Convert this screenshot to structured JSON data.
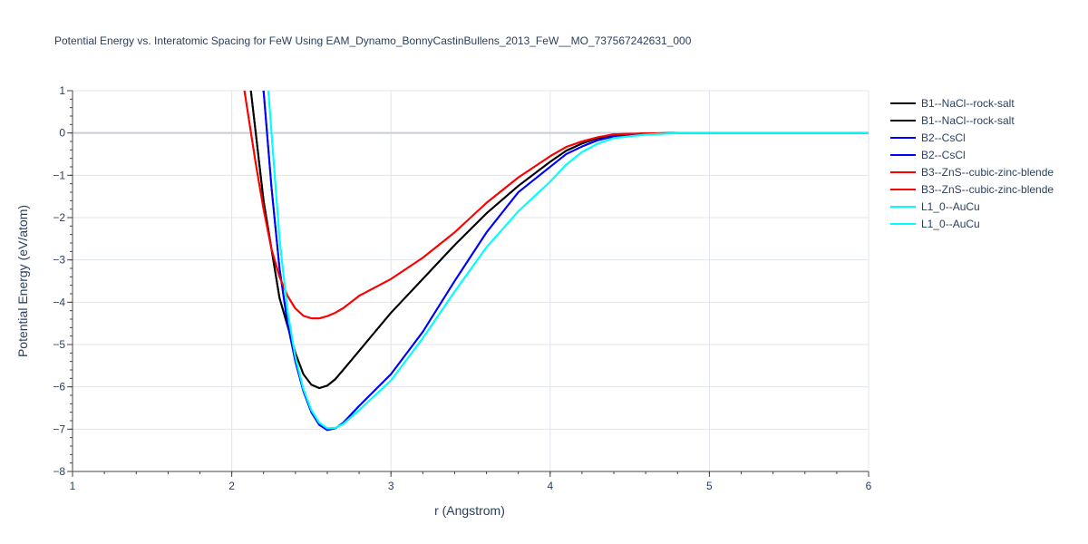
{
  "chart_data": {
    "type": "line",
    "title": "Potential Energy vs. Interatomic Spacing for FeW Using EAM_Dynamo_BonnyCastinBullens_2013_FeW__MO_737567242631_000",
    "xlabel": "r (Angstrom)",
    "ylabel": "Potential Energy (eV/atom)",
    "xlim": [
      1,
      6
    ],
    "ylim": [
      -8,
      1
    ],
    "xticks": [
      1,
      2,
      3,
      4,
      5,
      6
    ],
    "yticks": [
      1,
      0,
      -1,
      -2,
      -3,
      -4,
      -5,
      -6,
      -7,
      -8
    ],
    "xtick_labels": [
      "1",
      "2",
      "3",
      "4",
      "5",
      "6"
    ],
    "ytick_labels": [
      "1",
      "0",
      "−1",
      "−2",
      "−3",
      "−4",
      "−5",
      "−6",
      "−7",
      "−8"
    ],
    "grid": true,
    "legend_position": "right",
    "series": [
      {
        "name": "B1--NaCl--rock-salt",
        "color": "#000000",
        "x": [
          2.12,
          2.2,
          2.3,
          2.4,
          2.45,
          2.5,
          2.55,
          2.6,
          2.65,
          2.7,
          2.8,
          2.9,
          3.0,
          3.2,
          3.4,
          3.6,
          3.8,
          4.0,
          4.1,
          4.2,
          4.3,
          4.4,
          4.6,
          4.8,
          5.0,
          6.0
        ],
        "y": [
          1.0,
          -1.6,
          -3.9,
          -5.2,
          -5.7,
          -5.95,
          -6.03,
          -5.97,
          -5.82,
          -5.6,
          -5.15,
          -4.7,
          -4.25,
          -3.45,
          -2.65,
          -1.9,
          -1.25,
          -0.68,
          -0.42,
          -0.25,
          -0.12,
          -0.05,
          -0.01,
          0.0,
          0.0,
          0.0
        ]
      },
      {
        "name": "B1--NaCl--rock-salt",
        "color": "#000000",
        "x": [
          2.12,
          2.2,
          2.3,
          2.4,
          2.45,
          2.5,
          2.55,
          2.6,
          2.65,
          2.7,
          2.8,
          2.9,
          3.0,
          3.2,
          3.4,
          3.6,
          3.8,
          4.0,
          4.1,
          4.2,
          4.3,
          4.4,
          4.6,
          4.8,
          5.0,
          6.0
        ],
        "y": [
          1.0,
          -1.6,
          -3.9,
          -5.2,
          -5.7,
          -5.95,
          -6.03,
          -5.97,
          -5.82,
          -5.6,
          -5.15,
          -4.7,
          -4.25,
          -3.45,
          -2.65,
          -1.9,
          -1.25,
          -0.68,
          -0.42,
          -0.25,
          -0.12,
          -0.05,
          -0.01,
          0.0,
          0.0,
          0.0
        ]
      },
      {
        "name": "B2--CsCl",
        "color": "#0000ff",
        "x": [
          2.2,
          2.25,
          2.3,
          2.35,
          2.4,
          2.45,
          2.5,
          2.55,
          2.6,
          2.65,
          2.7,
          2.8,
          3.0,
          3.2,
          3.4,
          3.6,
          3.8,
          4.0,
          4.1,
          4.2,
          4.3,
          4.4,
          4.6,
          4.8,
          5.0,
          6.0
        ],
        "y": [
          1.0,
          -1.3,
          -3.2,
          -4.5,
          -5.4,
          -6.1,
          -6.6,
          -6.9,
          -7.02,
          -6.98,
          -6.85,
          -6.45,
          -5.7,
          -4.7,
          -3.5,
          -2.35,
          -1.4,
          -0.8,
          -0.5,
          -0.32,
          -0.17,
          -0.08,
          -0.02,
          0.0,
          0.0,
          0.0
        ]
      },
      {
        "name": "B2--CsCl",
        "color": "#0000ff",
        "x": [
          2.2,
          2.25,
          2.3,
          2.35,
          2.4,
          2.45,
          2.5,
          2.55,
          2.6,
          2.65,
          2.7,
          2.8,
          3.0,
          3.2,
          3.4,
          3.6,
          3.8,
          4.0,
          4.1,
          4.2,
          4.3,
          4.4,
          4.6,
          4.8,
          5.0,
          6.0
        ],
        "y": [
          1.0,
          -1.3,
          -3.2,
          -4.5,
          -5.4,
          -6.1,
          -6.6,
          -6.9,
          -7.02,
          -6.98,
          -6.85,
          -6.45,
          -5.7,
          -4.7,
          -3.5,
          -2.35,
          -1.4,
          -0.8,
          -0.5,
          -0.32,
          -0.17,
          -0.08,
          -0.02,
          0.0,
          0.0,
          0.0
        ]
      },
      {
        "name": "B3--ZnS--cubic-zinc-blende",
        "color": "#ff0000",
        "x": [
          2.08,
          2.15,
          2.2,
          2.25,
          2.3,
          2.35,
          2.4,
          2.45,
          2.5,
          2.55,
          2.6,
          2.65,
          2.7,
          2.8,
          3.0,
          3.2,
          3.4,
          3.6,
          3.8,
          4.0,
          4.1,
          4.2,
          4.3,
          4.4,
          4.6,
          4.8,
          5.0,
          6.0
        ],
        "y": [
          1.0,
          -0.7,
          -1.8,
          -2.75,
          -3.4,
          -3.85,
          -4.15,
          -4.32,
          -4.38,
          -4.38,
          -4.33,
          -4.25,
          -4.14,
          -3.85,
          -3.45,
          -2.95,
          -2.35,
          -1.65,
          -1.05,
          -0.55,
          -0.33,
          -0.2,
          -0.1,
          -0.03,
          -0.01,
          0.0,
          0.0,
          0.0
        ]
      },
      {
        "name": "B3--ZnS--cubic-zinc-blende",
        "color": "#ff0000",
        "x": [
          2.08,
          2.15,
          2.2,
          2.25,
          2.3,
          2.35,
          2.4,
          2.45,
          2.5,
          2.55,
          2.6,
          2.65,
          2.7,
          2.8,
          3.0,
          3.2,
          3.4,
          3.6,
          3.8,
          4.0,
          4.1,
          4.2,
          4.3,
          4.4,
          4.6,
          4.8,
          5.0,
          6.0
        ],
        "y": [
          1.0,
          -0.7,
          -1.8,
          -2.75,
          -3.4,
          -3.85,
          -4.15,
          -4.32,
          -4.38,
          -4.38,
          -4.33,
          -4.25,
          -4.14,
          -3.85,
          -3.45,
          -2.95,
          -2.35,
          -1.65,
          -1.05,
          -0.55,
          -0.33,
          -0.2,
          -0.1,
          -0.03,
          -0.01,
          0.0,
          0.0,
          0.0
        ]
      },
      {
        "name": "L1_0--AuCu",
        "color": "#00ffff",
        "x": [
          2.23,
          2.27,
          2.3,
          2.35,
          2.4,
          2.45,
          2.5,
          2.55,
          2.6,
          2.65,
          2.7,
          2.8,
          3.0,
          3.2,
          3.4,
          3.6,
          3.8,
          4.0,
          4.1,
          4.2,
          4.3,
          4.4,
          4.6,
          4.8,
          5.0,
          6.0
        ],
        "y": [
          1.0,
          -1.0,
          -2.5,
          -4.2,
          -5.3,
          -6.05,
          -6.55,
          -6.85,
          -6.98,
          -6.97,
          -6.88,
          -6.55,
          -5.85,
          -4.85,
          -3.75,
          -2.7,
          -1.85,
          -1.15,
          -0.75,
          -0.45,
          -0.25,
          -0.12,
          -0.04,
          0.0,
          0.0,
          0.0
        ]
      },
      {
        "name": "L1_0--AuCu",
        "color": "#00ffff",
        "x": [
          2.23,
          2.27,
          2.3,
          2.35,
          2.4,
          2.45,
          2.5,
          2.55,
          2.6,
          2.65,
          2.7,
          2.8,
          3.0,
          3.2,
          3.4,
          3.6,
          3.8,
          4.0,
          4.1,
          4.2,
          4.3,
          4.4,
          4.6,
          4.8,
          5.0,
          6.0
        ],
        "y": [
          1.0,
          -1.0,
          -2.5,
          -4.2,
          -5.3,
          -6.05,
          -6.55,
          -6.85,
          -6.98,
          -6.97,
          -6.88,
          -6.55,
          -5.85,
          -4.85,
          -3.75,
          -2.7,
          -1.85,
          -1.15,
          -0.75,
          -0.45,
          -0.25,
          -0.12,
          -0.04,
          0.0,
          0.0,
          0.0
        ]
      }
    ]
  }
}
